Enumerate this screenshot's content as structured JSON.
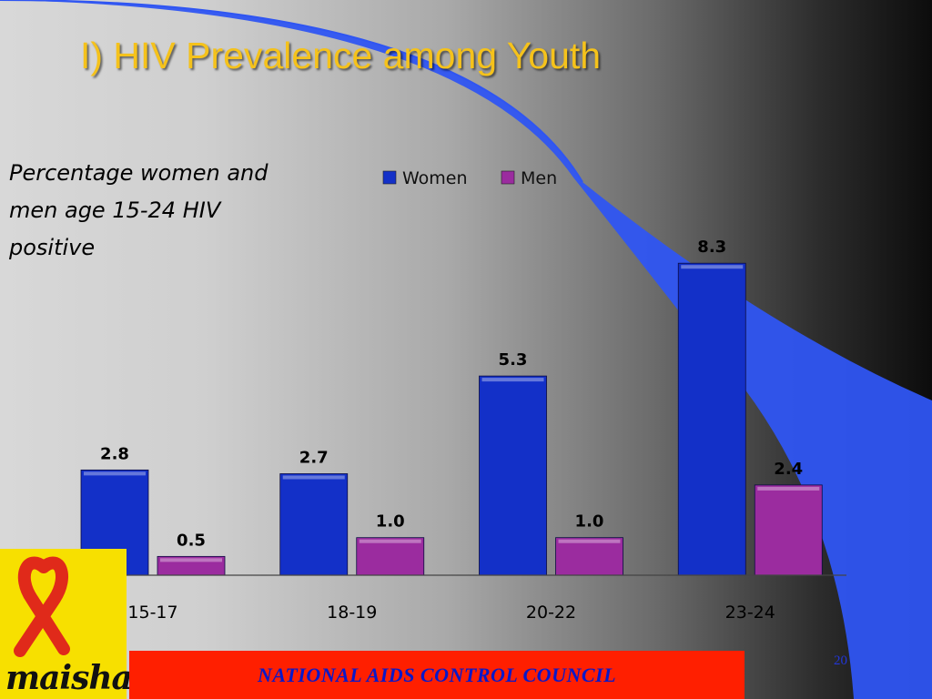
{
  "slide": {
    "title": "I)  HIV Prevalence among Youth",
    "subtitle": "Percentage women and men age 15-24 HIV positive",
    "footer": "NATIONAL AIDS CONTROL COUNCIL",
    "page_number": "20",
    "logo_text": "maisha!"
  },
  "colors": {
    "women": "#1330c8",
    "men": "#9b2c9f",
    "title": "#f5c21b",
    "footer_bg": "#ff1f00",
    "footer_text": "#0a18c8",
    "logo_bg": "#f7e000",
    "ribbon": "#e02a1a",
    "decor_blue": "#2f55f2"
  },
  "chart_data": {
    "type": "bar",
    "categories": [
      "15-17",
      "18-19",
      "20-22",
      "23-24"
    ],
    "series": [
      {
        "name": "Women",
        "values": [
          2.8,
          2.7,
          5.3,
          8.3
        ]
      },
      {
        "name": "Men",
        "values": [
          0.5,
          1.0,
          1.0,
          2.4
        ]
      }
    ],
    "value_labels": [
      [
        "2.8",
        "2.7",
        "5.3",
        "8.3"
      ],
      [
        "0.5",
        "1.0",
        "1.0",
        "2.4"
      ]
    ],
    "title": "",
    "xlabel": "",
    "ylabel": "",
    "ylim": [
      0,
      10
    ],
    "grid": false,
    "legend": "top-center"
  }
}
